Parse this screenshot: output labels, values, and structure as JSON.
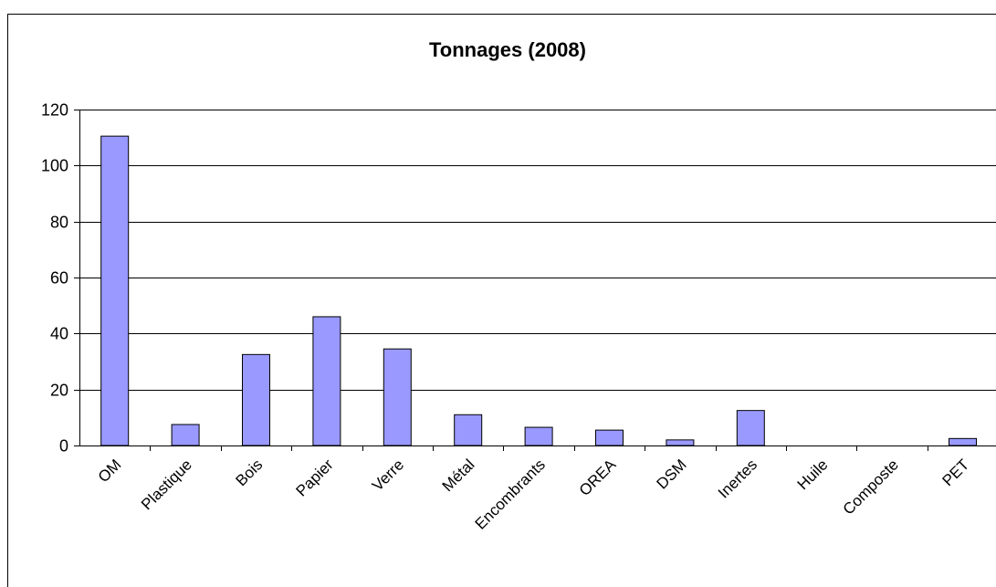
{
  "chart_data": {
    "type": "bar",
    "title": "Tonnages (2008)",
    "xlabel": "",
    "ylabel": "",
    "categories": [
      "OM",
      "Plastique",
      "Bois",
      "Papier",
      "Verre",
      "Métal",
      "Encombrants",
      "OREA",
      "DSM",
      "Inertes",
      "Huile",
      "Composte",
      "PET"
    ],
    "values": [
      110.5,
      7.5,
      32.5,
      46,
      34.5,
      11,
      6.5,
      5.5,
      2,
      12.5,
      0,
      0,
      2.5
    ],
    "ylim": [
      0,
      120
    ],
    "yticks": [
      "0",
      "20",
      "40",
      "60",
      "80",
      "100",
      "120"
    ],
    "grid": true,
    "legend": "none",
    "bar_color": "#9999ff",
    "bar_edge_color": "#000000"
  }
}
